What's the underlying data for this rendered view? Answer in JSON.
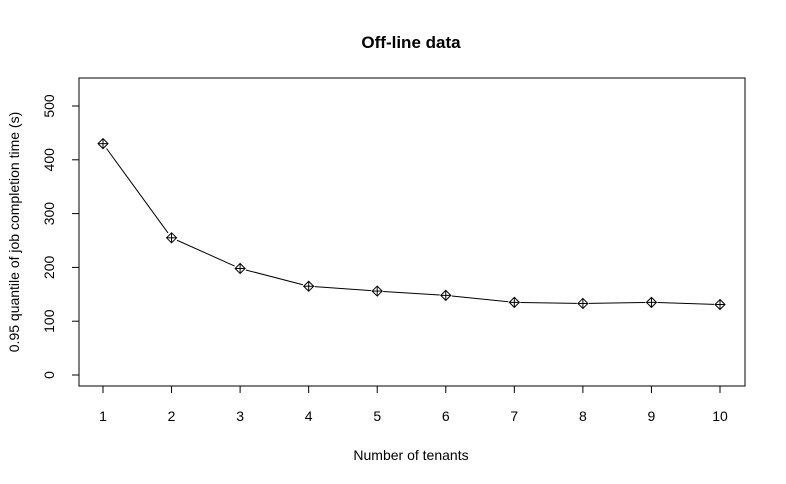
{
  "chart_data": {
    "type": "line",
    "title": "Off-line data",
    "xlabel": "Number of tenants",
    "ylabel": "0.95 quantile of job completion time (s)",
    "x": [
      1,
      2,
      3,
      4,
      5,
      6,
      7,
      8,
      9,
      10
    ],
    "series": [
      {
        "values": [
          430,
          255,
          198,
          165,
          156,
          148,
          135,
          133,
          135,
          131
        ],
        "marker": "diamond-plus",
        "color": "#000000"
      }
    ],
    "xlim": [
      1,
      10
    ],
    "ylim": [
      0,
      500
    ],
    "xticks": [
      "1",
      "2",
      "3",
      "4",
      "5",
      "6",
      "7",
      "8",
      "9",
      "10"
    ],
    "yticks": [
      "0",
      "100",
      "200",
      "300",
      "400",
      "500"
    ],
    "grid": false,
    "legend": "none"
  }
}
